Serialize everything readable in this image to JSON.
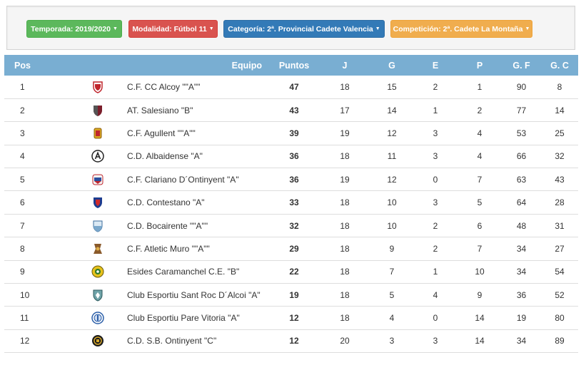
{
  "filters": {
    "season": "Temporada: 2019/2020",
    "mode": "Modalidad: Fútbol 11",
    "category": "Categoría: 2ª. Provincial Cadete Valencia",
    "competition": "Competición: 2ª. Cadete La Montaña"
  },
  "table": {
    "headers": {
      "pos": "Pos",
      "team": "Equipo",
      "points": "Puntos",
      "played": "J",
      "won": "G",
      "drawn": "E",
      "lost": "P",
      "goals_for": "G. F",
      "goals_against": "G. C"
    },
    "rows": [
      {
        "pos": "1",
        "crest": "crest-red-shield-icon",
        "team": "C.F. CC Alcoy \"\"A\"\"",
        "points": "47",
        "played": "18",
        "won": "15",
        "drawn": "2",
        "lost": "1",
        "gf": "90",
        "ga": "8"
      },
      {
        "pos": "2",
        "crest": "crest-maroon-shield-icon",
        "team": "AT. Salesiano \"B\"",
        "points": "43",
        "played": "17",
        "won": "14",
        "drawn": "1",
        "lost": "2",
        "gf": "77",
        "ga": "14"
      },
      {
        "pos": "3",
        "crest": "crest-gold-shield-icon",
        "team": "C.F. Agullent \"\"A\"\"",
        "points": "39",
        "played": "19",
        "won": "12",
        "drawn": "3",
        "lost": "4",
        "gf": "53",
        "ga": "25"
      },
      {
        "pos": "4",
        "crest": "crest-black-circle-a-icon",
        "team": "C.D. Albaidense \"A\"",
        "points": "36",
        "played": "18",
        "won": "11",
        "drawn": "3",
        "lost": "4",
        "gf": "66",
        "ga": "32"
      },
      {
        "pos": "5",
        "crest": "crest-red-blue-badge-icon",
        "team": "C.F. Clariano D´Ontinyent \"A\"",
        "points": "36",
        "played": "19",
        "won": "12",
        "drawn": "0",
        "lost": "7",
        "gf": "63",
        "ga": "43"
      },
      {
        "pos": "6",
        "crest": "crest-blue-red-shield-icon",
        "team": "C.D. Contestano \"A\"",
        "points": "33",
        "played": "18",
        "won": "10",
        "drawn": "3",
        "lost": "5",
        "gf": "64",
        "ga": "28"
      },
      {
        "pos": "7",
        "crest": "crest-light-blue-shield-icon",
        "team": "C.D. Bocairente \"\"A\"\"",
        "points": "32",
        "played": "18",
        "won": "10",
        "drawn": "2",
        "lost": "6",
        "gf": "48",
        "ga": "31"
      },
      {
        "pos": "8",
        "crest": "crest-brown-figure-icon",
        "team": "C.F. Atletic Muro \"\"A\"\"",
        "points": "29",
        "played": "18",
        "won": "9",
        "drawn": "2",
        "lost": "7",
        "gf": "34",
        "ga": "27"
      },
      {
        "pos": "9",
        "crest": "crest-yellow-circle-icon",
        "team": "Esides Caramanchel C.E. \"B\"",
        "points": "22",
        "played": "18",
        "won": "7",
        "drawn": "1",
        "lost": "10",
        "gf": "34",
        "ga": "54"
      },
      {
        "pos": "10",
        "crest": "crest-teal-shield-icon",
        "team": "Club Esportiu Sant Roc D´Alcoi \"A\"",
        "points": "19",
        "played": "18",
        "won": "5",
        "drawn": "4",
        "lost": "9",
        "gf": "36",
        "ga": "52"
      },
      {
        "pos": "11",
        "crest": "crest-blue-circle-icon",
        "team": "Club Esportiu Pare Vitoria \"A\"",
        "points": "12",
        "played": "18",
        "won": "4",
        "drawn": "0",
        "lost": "14",
        "gf": "19",
        "ga": "80"
      },
      {
        "pos": "12",
        "crest": "crest-black-gold-circle-icon",
        "team": "C.D. S.B. Ontinyent \"C\"",
        "points": "12",
        "played": "20",
        "won": "3",
        "drawn": "3",
        "lost": "14",
        "gf": "34",
        "ga": "89"
      }
    ]
  }
}
